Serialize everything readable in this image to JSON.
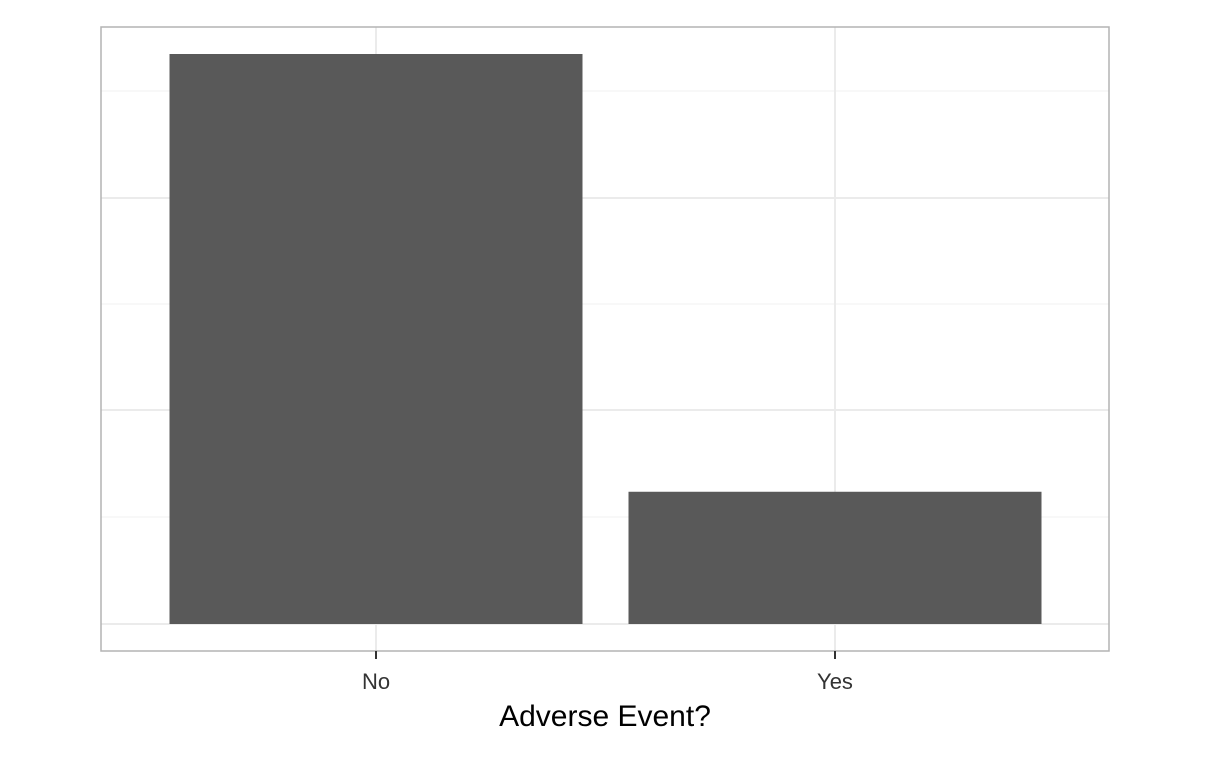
{
  "chart_data": {
    "type": "bar",
    "categories": [
      "No",
      "Yes"
    ],
    "values": [
      1.0,
      0.232
    ],
    "xlabel": "Adverse Event?",
    "ylabel": "",
    "ylim": [
      0,
      1.05
    ],
    "y_ticks_labeled": false,
    "grid": true,
    "legend": "none",
    "colors": {
      "bar": "#595959",
      "panel_border": "#b3b3b3",
      "grid_major": "#ebebeb",
      "grid_minor": "#f5f5f5",
      "background": "#ffffff"
    }
  }
}
